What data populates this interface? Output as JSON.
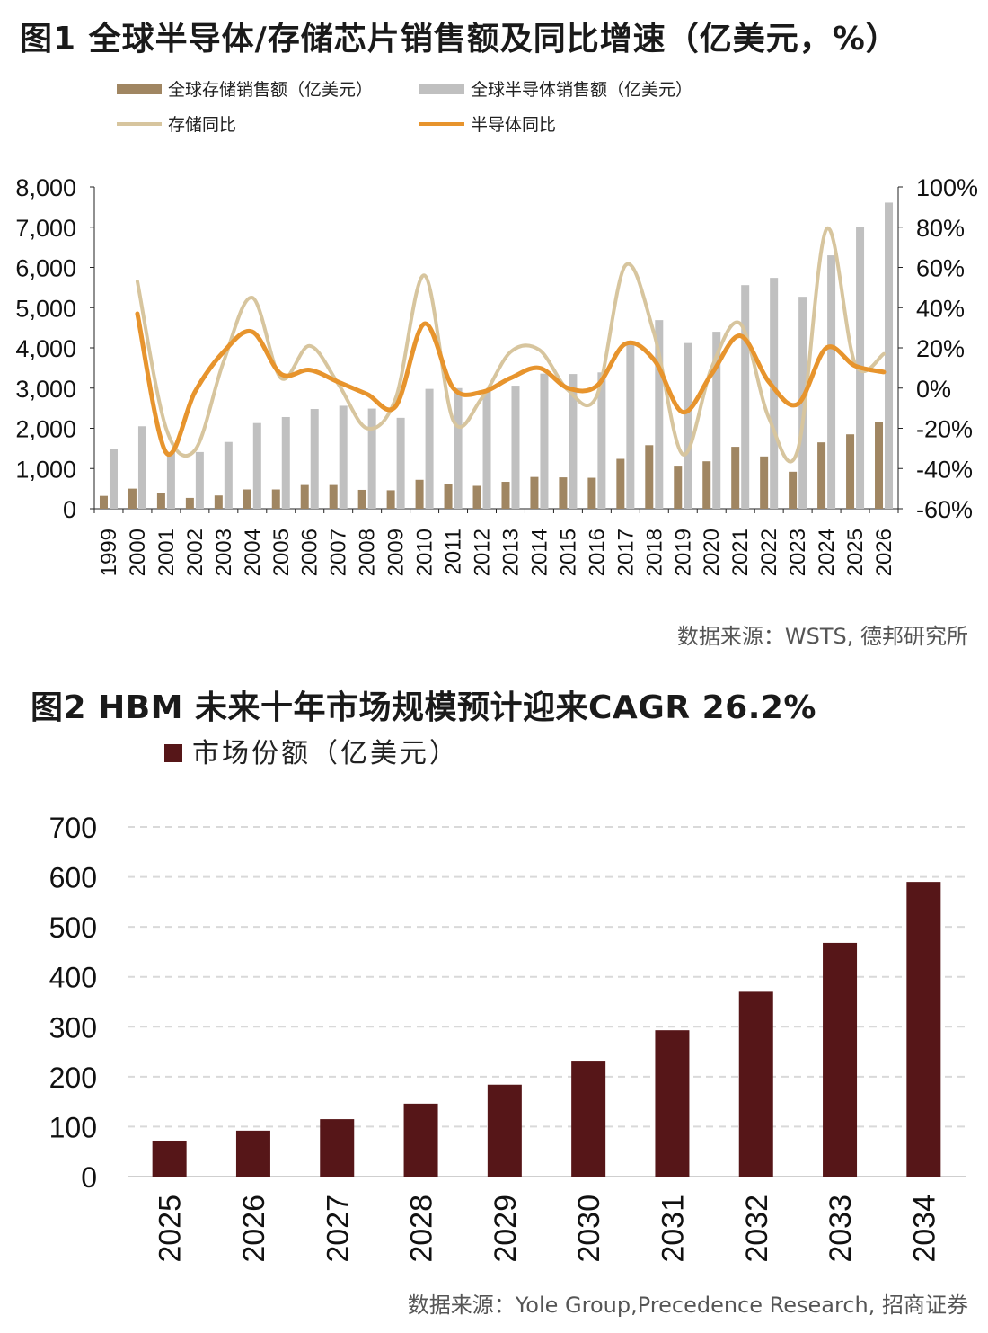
{
  "figure1": {
    "title": "图1  全球半导体/存储芯片销售额及同比增速（亿美元，%）",
    "source": "数据来源：WSTS, 德邦研究所",
    "colors": {
      "memory_bar": "#a08662",
      "semi_bar": "#c0c0c0",
      "memory_line": "#d7c59e",
      "semi_line": "#e7942d"
    },
    "chart_data": {
      "type": "bar+line",
      "x": [
        "1999",
        "2000",
        "2001",
        "2002",
        "2003",
        "2004",
        "2005",
        "2006",
        "2007",
        "2008",
        "2009",
        "2010",
        "2011",
        "2012",
        "2013",
        "2014",
        "2015",
        "2016",
        "2017",
        "2018",
        "2019",
        "2020",
        "2021",
        "2022",
        "2023",
        "2024",
        "2025",
        "2026"
      ],
      "y_left_ticks": [
        "0",
        "1,000",
        "2,000",
        "3,000",
        "4,000",
        "5,000",
        "6,000",
        "7,000",
        "8,000"
      ],
      "y_left_range": [
        0,
        8000
      ],
      "y_right_ticks": [
        "-60%",
        "-40%",
        "-20%",
        "0%",
        "20%",
        "40%",
        "60%",
        "80%",
        "100%"
      ],
      "y_right_range": [
        -60,
        100
      ],
      "legend_placement": "top-left",
      "series": [
        {
          "name": "全球存储销售额（亿美元）",
          "kind": "bar",
          "axis": "left",
          "values": [
            320,
            500,
            390,
            270,
            330,
            480,
            480,
            590,
            590,
            470,
            460,
            720,
            610,
            570,
            670,
            790,
            780,
            770,
            1240,
            1580,
            1070,
            1180,
            1540,
            1300,
            920,
            1650,
            1850,
            2150
          ]
        },
        {
          "name": "全球半导体销售额（亿美元）",
          "kind": "bar",
          "axis": "left",
          "values": [
            1490,
            2050,
            1400,
            1410,
            1660,
            2130,
            2280,
            2480,
            2560,
            2490,
            2260,
            2980,
            3000,
            2920,
            3060,
            3360,
            3350,
            3390,
            4120,
            4690,
            4120,
            4400,
            5560,
            5740,
            5270,
            6300,
            7010,
            7610
          ]
        },
        {
          "name": "存储同比",
          "kind": "line",
          "axis": "right",
          "values": [
            null,
            53,
            -20,
            -31,
            13,
            45,
            5,
            21,
            2,
            -20,
            -5,
            56,
            -16,
            -5,
            18,
            19,
            -1,
            -4,
            61,
            27,
            -33,
            10,
            32,
            -15,
            -31,
            79,
            12,
            17
          ]
        },
        {
          "name": "半导体同比",
          "kind": "line",
          "axis": "right",
          "values": [
            null,
            37,
            -32,
            -2,
            18,
            28,
            7,
            9,
            3,
            -3,
            -9,
            32,
            0,
            -2,
            5,
            10,
            0,
            1,
            22,
            14,
            -12,
            7,
            26,
            3,
            -8,
            20,
            11,
            8
          ]
        }
      ]
    }
  },
  "figure2": {
    "title": "图2  HBM 未来十年市场规模预计迎来CAGR 26.2%",
    "source": "数据来源：Yole Group,Precedence Research, 招商证券",
    "colors": {
      "bar": "#561618",
      "grid": "#d9d9d9"
    },
    "chart_data": {
      "type": "bar",
      "categories": [
        "2025",
        "2026",
        "2027",
        "2028",
        "2029",
        "2030",
        "2031",
        "2032",
        "2033",
        "2034"
      ],
      "series": [
        {
          "name": "市场份额（亿美元）",
          "values": [
            72,
            92,
            115,
            146,
            184,
            232,
            293,
            370,
            468,
            590
          ]
        }
      ],
      "y_ticks": [
        "0",
        "100",
        "200",
        "300",
        "400",
        "500",
        "600",
        "700"
      ],
      "ylim": [
        0,
        700
      ],
      "grid": true,
      "legend_placement": "top-left"
    }
  }
}
